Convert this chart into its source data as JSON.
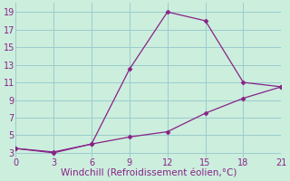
{
  "line1_x": [
    0,
    3,
    6,
    9,
    12,
    15,
    18,
    21
  ],
  "line1_y": [
    3.5,
    3.0,
    4.0,
    12.5,
    19.0,
    18.0,
    11.0,
    10.5
  ],
  "line2_x": [
    0,
    3,
    6,
    9,
    12,
    15,
    18,
    21
  ],
  "line2_y": [
    3.5,
    3.1,
    4.0,
    4.8,
    5.4,
    7.5,
    9.2,
    10.5
  ],
  "line_color": "#882288",
  "bg_color": "#cceedd",
  "grid_color": "#99cccc",
  "xlabel": "Windchill (Refroidissement éolien,°C)",
  "xlabel_color": "#882288",
  "xticks": [
    0,
    3,
    6,
    9,
    12,
    15,
    18,
    21
  ],
  "yticks": [
    3,
    5,
    7,
    9,
    11,
    13,
    15,
    17,
    19
  ],
  "xlim": [
    0,
    21
  ],
  "ylim": [
    2.5,
    20.0
  ],
  "xlabel_fontsize": 7.5,
  "tick_fontsize": 7,
  "marker": "D",
  "markersize": 2.5,
  "linewidth": 0.9
}
